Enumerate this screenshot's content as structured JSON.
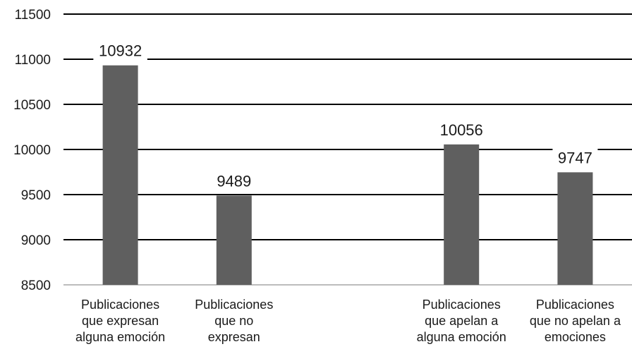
{
  "chart_data": {
    "type": "bar",
    "categories": [
      [
        "Publicaciones",
        "que expresan",
        "alguna emoción"
      ],
      [
        "Publicaciones",
        "que no",
        "expresan"
      ],
      [
        "",
        "",
        ""
      ],
      [
        "Publicaciones",
        "que apelan a",
        "alguna emoción"
      ],
      [
        "Publicaciones",
        "que no apelan a",
        "emociones"
      ]
    ],
    "values": [
      10932,
      9489,
      null,
      10056,
      9747
    ],
    "data_labels": [
      "10932",
      "9489",
      "",
      "10056",
      "9747"
    ],
    "yticks": [
      "11500",
      "11000",
      "10500",
      "10000",
      "9500",
      "9000",
      "8500"
    ],
    "ylim": [
      8500,
      11500
    ],
    "grid": true,
    "title": "",
    "xlabel": "",
    "ylabel": "",
    "colors": {
      "bar": "#5f5f5f",
      "grid": "#000000",
      "axis": "#a6a6a6",
      "text": "#1a1a1a"
    }
  }
}
